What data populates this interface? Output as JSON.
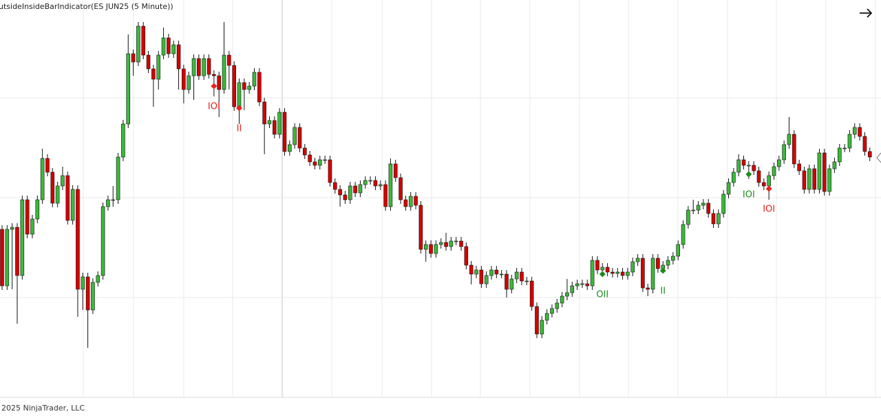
{
  "chart_data": {
    "type": "candlestick",
    "title": "utsideInsideBarIndicator(ES JUN25 (5 Minute))",
    "footer": "2025 NinjaTrader, LLC",
    "up_color": "#3cb83c",
    "down_color": "#d40000",
    "ylim": [
      0,
      600
    ],
    "open": [
      267,
      185,
      267,
      270,
      200,
      310,
      260,
      282,
      310,
      370,
      350,
      305,
      330,
      345,
      280,
      325,
      180,
      198,
      150,
      190,
      200,
      300,
      310,
      310,
      372,
      420,
      522,
      510,
      562,
      520,
      500,
      485,
      520,
      545,
      522,
      535,
      500,
      470,
      490,
      515,
      490,
      515,
      492,
      490,
      470,
      520,
      505,
      445,
      480,
      470,
      475,
      495,
      452,
      420,
      425,
      405,
      437,
      380,
      390,
      415,
      385,
      375,
      365,
      360,
      368,
      368,
      335,
      325,
      317,
      310,
      330,
      320,
      332,
      338,
      338,
      330,
      332,
      300,
      362,
      342,
      310,
      300,
      315,
      302,
      238,
      245,
      232,
      245,
      248,
      242,
      250,
      250,
      242,
      215,
      202,
      208,
      188,
      200,
      208,
      202,
      202,
      180,
      195,
      205,
      192,
      192,
      155,
      115,
      135,
      145,
      152,
      160,
      170,
      175,
      185,
      188,
      188,
      185,
      222,
      208,
      212,
      205,
      203,
      205,
      200,
      205,
      220,
      225,
      182,
      180,
      225,
      210,
      215,
      222,
      228,
      245,
      274,
      295,
      295,
      302,
      305,
      290,
      275,
      290,
      318,
      335,
      350,
      368,
      360,
      360,
      352,
      335,
      330,
      345,
      358,
      368,
      390,
      405,
      362,
      352,
      325,
      355,
      325,
      378,
      322,
      355,
      365,
      385,
      385,
      405,
      415,
      402,
      380
    ],
    "high": [
      273,
      273,
      276,
      276,
      316,
      316,
      288,
      316,
      384,
      376,
      356,
      336,
      358,
      351,
      331,
      331,
      204,
      204,
      196,
      206,
      306,
      316,
      330,
      378,
      426,
      550,
      528,
      568,
      568,
      526,
      506,
      526,
      560,
      551,
      541,
      541,
      506,
      496,
      521,
      521,
      521,
      521,
      498,
      496,
      568,
      526,
      511,
      486,
      486,
      481,
      501,
      501,
      458,
      431,
      431,
      443,
      443,
      396,
      421,
      421,
      391,
      381,
      371,
      374,
      374,
      374,
      341,
      331,
      323,
      336,
      336,
      338,
      344,
      344,
      344,
      338,
      338,
      370,
      368,
      348,
      316,
      321,
      321,
      308,
      251,
      251,
      251,
      254,
      262,
      256,
      256,
      256,
      248,
      221,
      214,
      214,
      206,
      214,
      214,
      208,
      208,
      201,
      211,
      211,
      198,
      198,
      161,
      141,
      151,
      158,
      166,
      176,
      195,
      191,
      194,
      194,
      194,
      228,
      228,
      218,
      218,
      211,
      211,
      211,
      211,
      226,
      231,
      231,
      188,
      231,
      231,
      221,
      228,
      234,
      251,
      280,
      301,
      310,
      308,
      311,
      311,
      296,
      296,
      324,
      341,
      356,
      376,
      374,
      366,
      366,
      358,
      341,
      351,
      364,
      374,
      396,
      430,
      411,
      368,
      358,
      361,
      361,
      384,
      384,
      361,
      371,
      391,
      391,
      411,
      421,
      421,
      408,
      386
    ],
    "low": [
      179,
      179,
      180,
      130,
      194,
      254,
      254,
      276,
      304,
      344,
      299,
      299,
      324,
      274,
      274,
      140,
      150,
      95,
      144,
      184,
      194,
      294,
      300,
      304,
      366,
      414,
      490,
      504,
      514,
      494,
      445,
      470,
      514,
      516,
      516,
      470,
      450,
      464,
      455,
      484,
      484,
      486,
      460,
      430,
      464,
      470,
      439,
      420,
      440,
      464,
      469,
      446,
      376,
      414,
      399,
      399,
      374,
      374,
      384,
      379,
      369,
      359,
      354,
      354,
      362,
      329,
      319,
      300,
      304,
      304,
      314,
      314,
      326,
      332,
      324,
      324,
      294,
      294,
      336,
      304,
      294,
      294,
      296,
      232,
      220,
      226,
      226,
      239,
      236,
      236,
      244,
      236,
      209,
      187,
      196,
      182,
      182,
      194,
      196,
      196,
      168,
      174,
      189,
      186,
      186,
      149,
      109,
      109,
      129,
      139,
      146,
      154,
      164,
      169,
      179,
      182,
      179,
      179,
      202,
      202,
      199,
      197,
      197,
      194,
      194,
      199,
      214,
      176,
      170,
      174,
      204,
      204,
      209,
      216,
      222,
      239,
      268,
      289,
      289,
      296,
      284,
      269,
      269,
      284,
      312,
      329,
      344,
      354,
      340,
      346,
      329,
      324,
      310,
      339,
      352,
      362,
      384,
      356,
      346,
      319,
      319,
      319,
      319,
      316,
      316,
      349,
      359,
      379,
      379,
      399,
      396,
      374,
      366
    ],
    "close": [
      185,
      267,
      270,
      200,
      310,
      260,
      282,
      310,
      370,
      350,
      305,
      330,
      345,
      280,
      325,
      180,
      198,
      150,
      190,
      200,
      300,
      310,
      310,
      372,
      420,
      522,
      510,
      562,
      520,
      500,
      485,
      520,
      545,
      522,
      535,
      500,
      470,
      490,
      515,
      490,
      515,
      492,
      490,
      470,
      520,
      505,
      445,
      480,
      470,
      475,
      495,
      452,
      420,
      425,
      405,
      437,
      380,
      390,
      415,
      385,
      375,
      365,
      360,
      368,
      368,
      335,
      325,
      317,
      310,
      330,
      320,
      332,
      338,
      338,
      330,
      332,
      300,
      362,
      342,
      310,
      300,
      315,
      302,
      238,
      245,
      232,
      245,
      248,
      242,
      250,
      250,
      242,
      215,
      202,
      208,
      188,
      200,
      208,
      202,
      202,
      180,
      195,
      205,
      192,
      192,
      155,
      115,
      135,
      145,
      152,
      160,
      170,
      175,
      185,
      188,
      188,
      185,
      222,
      208,
      212,
      205,
      203,
      205,
      200,
      205,
      220,
      225,
      182,
      180,
      225,
      210,
      215,
      222,
      228,
      245,
      274,
      295,
      295,
      302,
      305,
      290,
      275,
      290,
      318,
      335,
      350,
      368,
      360,
      360,
      352,
      335,
      330,
      345,
      358,
      368,
      390,
      405,
      362,
      352,
      325,
      355,
      325,
      378,
      322,
      355,
      365,
      385,
      385,
      405,
      415,
      402,
      380,
      372
    ],
    "annotations": [
      {
        "label": "IOI",
        "color": "#e8201c",
        "x": 42,
        "y": 475
      },
      {
        "label": "II",
        "color": "#e8201c",
        "x": 47,
        "y": 443
      },
      {
        "label": "OII",
        "color": "#1f8a1f",
        "x": 119,
        "y": 202
      },
      {
        "label": "II",
        "color": "#1f8a1f",
        "x": 131,
        "y": 207
      },
      {
        "label": "IOI",
        "color": "#1f8a1f",
        "x": 148,
        "y": 347
      },
      {
        "label": "IOI",
        "color": "#e8201c",
        "x": 152,
        "y": 326
      }
    ]
  }
}
